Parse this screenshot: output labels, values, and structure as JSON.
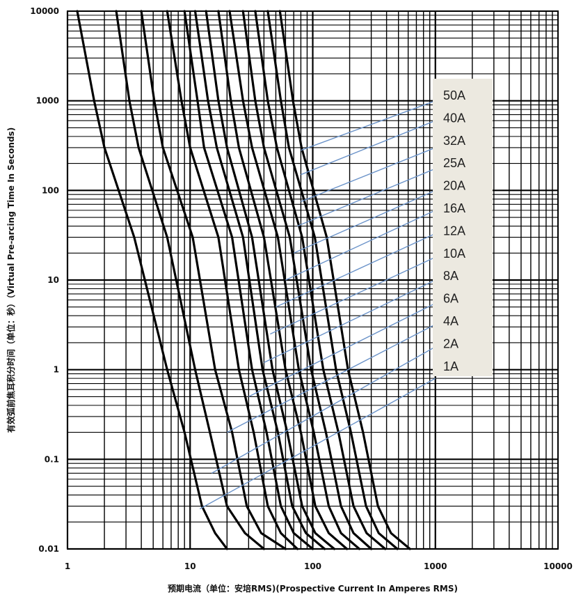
{
  "chart_data": {
    "type": "line",
    "x_scale": "log",
    "y_scale": "log",
    "xlim": [
      1,
      10000
    ],
    "ylim": [
      0.01,
      10000
    ],
    "x_tick_labels": [
      "1",
      "10",
      "100",
      "1000",
      "10000"
    ],
    "y_tick_labels": [
      "0.01",
      "0.1",
      "1",
      "10",
      "100",
      "1000",
      "10000"
    ],
    "xlabel": "预期电流（单位：安培RMS)(Prospective Current In Amperes RMS)",
    "ylabel": "有效弧前焦耳积分时间（单位：秒）（Virtual Pre-arcing Time In Seconds)",
    "grid": true,
    "legend_placement": "right",
    "legend_background": "#ece9e0",
    "leader_color": "#6b93c9",
    "curve_color": "#000000",
    "series": [
      {
        "name": "1A",
        "x": [
          1.2,
          1.65,
          2.0,
          3.5,
          6.5,
          9.0,
          12.5,
          16.0,
          20.0
        ],
        "y": [
          10000,
          1000,
          300,
          30,
          1,
          0.2,
          0.03,
          0.015,
          0.01
        ]
      },
      {
        "name": "2A",
        "x": [
          2.5,
          3.2,
          3.8,
          6.5,
          11.0,
          14.5,
          20.0,
          28.0,
          40.0
        ],
        "y": [
          10000,
          1000,
          300,
          30,
          1,
          0.2,
          0.03,
          0.015,
          0.01
        ]
      },
      {
        "name": "4A",
        "x": [
          4.0,
          5.1,
          6.0,
          10.5,
          16.0,
          22.0,
          29.0,
          38.0,
          60.0
        ],
        "y": [
          10000,
          1000,
          300,
          30,
          1,
          0.2,
          0.03,
          0.015,
          0.01
        ]
      },
      {
        "name": "6A",
        "x": [
          6.5,
          8.5,
          10.0,
          17.0,
          25.0,
          33.0,
          43.0,
          55.0,
          75.0
        ],
        "y": [
          10000,
          1000,
          300,
          30,
          1,
          0.2,
          0.03,
          0.015,
          0.01
        ]
      },
      {
        "name": "8A",
        "x": [
          9.0,
          11.5,
          13.0,
          22.0,
          32.0,
          42.0,
          55.0,
          70.0,
          100.0
        ],
        "y": [
          10000,
          1000,
          300,
          30,
          1,
          0.2,
          0.03,
          0.015,
          0.01
        ]
      },
      {
        "name": "10A",
        "x": [
          11.0,
          14.0,
          16.5,
          27.0,
          39.0,
          52.0,
          68.0,
          88.0,
          125.0
        ],
        "y": [
          10000,
          1000,
          300,
          30,
          1,
          0.2,
          0.03,
          0.015,
          0.01
        ]
      },
      {
        "name": "12A",
        "x": [
          13.5,
          17.0,
          20.0,
          32.0,
          47.0,
          62.0,
          82.0,
          105.0,
          150.0
        ],
        "y": [
          10000,
          1000,
          300,
          30,
          1,
          0.2,
          0.03,
          0.015,
          0.01
        ]
      },
      {
        "name": "16A",
        "x": [
          17.0,
          21.5,
          25.0,
          40.0,
          60.0,
          80.0,
          105.0,
          135.0,
          190.0
        ],
        "y": [
          10000,
          1000,
          300,
          30,
          1,
          0.2,
          0.03,
          0.015,
          0.01
        ]
      },
      {
        "name": "20A",
        "x": [
          21.0,
          27.0,
          32.0,
          52.0,
          77.0,
          102.0,
          135.0,
          170.0,
          240.0
        ],
        "y": [
          10000,
          1000,
          300,
          30,
          1,
          0.2,
          0.03,
          0.015,
          0.01
        ]
      },
      {
        "name": "25A",
        "x": [
          27.0,
          34.0,
          40.0,
          65.0,
          97.0,
          128.0,
          170.0,
          215.0,
          300.0
        ],
        "y": [
          10000,
          1000,
          300,
          30,
          1,
          0.2,
          0.03,
          0.015,
          0.01
        ]
      },
      {
        "name": "32A",
        "x": [
          34.0,
          43.0,
          51.0,
          82.0,
          122.0,
          162.0,
          215.0,
          275.0,
          390.0
        ],
        "y": [
          10000,
          1000,
          300,
          30,
          1,
          0.2,
          0.03,
          0.015,
          0.01
        ]
      },
      {
        "name": "40A",
        "x": [
          43.0,
          55.0,
          64.0,
          104.0,
          155.0,
          205.0,
          272.0,
          345.0,
          490.0
        ],
        "y": [
          10000,
          1000,
          300,
          30,
          1,
          0.2,
          0.03,
          0.015,
          0.01
        ]
      },
      {
        "name": "50A",
        "x": [
          54.0,
          69.0,
          81.0,
          130.0,
          194.0,
          257.0,
          340.0,
          435.0,
          620.0
        ],
        "y": [
          10000,
          1000,
          300,
          30,
          1,
          0.2,
          0.03,
          0.015,
          0.01
        ]
      }
    ],
    "leaders": [
      {
        "label": "50A",
        "from": [
          80,
          280
        ],
        "to": [
          1000,
          1000
        ]
      },
      {
        "label": "40A",
        "from": [
          80,
          150
        ],
        "to": [
          1000,
          600
        ]
      },
      {
        "label": "32A",
        "from": [
          80,
          75
        ],
        "to": [
          1000,
          300
        ]
      },
      {
        "label": "25A",
        "from": [
          75,
          40
        ],
        "to": [
          1000,
          175
        ]
      },
      {
        "label": "20A",
        "from": [
          70,
          20
        ],
        "to": [
          1000,
          100
        ]
      },
      {
        "label": "16A",
        "from": [
          60,
          10
        ],
        "to": [
          1000,
          60
        ]
      },
      {
        "label": "12A",
        "from": [
          50,
          5
        ],
        "to": [
          1000,
          33
        ]
      },
      {
        "label": "10A",
        "from": [
          45,
          2.5
        ],
        "to": [
          1000,
          18
        ]
      },
      {
        "label": "8A",
        "from": [
          40,
          1.2
        ],
        "to": [
          1000,
          10
        ]
      },
      {
        "label": "6A",
        "from": [
          30,
          0.5
        ],
        "to": [
          1000,
          5.5
        ]
      },
      {
        "label": "4A",
        "from": [
          20,
          0.2
        ],
        "to": [
          1000,
          3.2
        ]
      },
      {
        "label": "2A",
        "from": [
          15,
          0.07
        ],
        "to": [
          1000,
          1.8
        ]
      },
      {
        "label": "1A",
        "from": [
          12,
          0.028
        ],
        "to": [
          1000,
          0.8
        ]
      }
    ]
  }
}
